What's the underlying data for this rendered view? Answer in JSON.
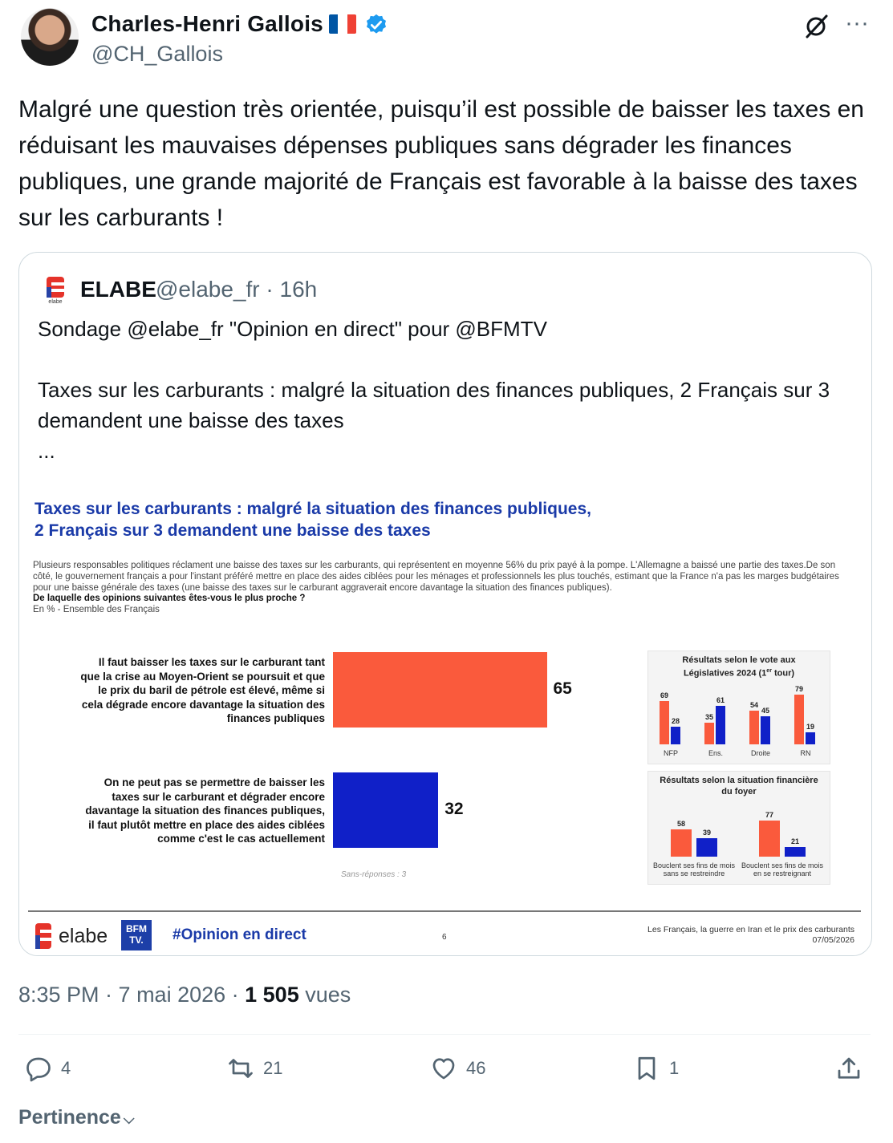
{
  "author": {
    "name": "Charles-Henri Gallois",
    "handle": "@CH_Gallois",
    "flag_colors": [
      "#0055a4",
      "#ffffff",
      "#ef4135"
    ],
    "verified_color": "#1d9bf0"
  },
  "tweet_text": "Malgré une question très orientée, puisqu’il est possible de baisser les taxes en réduisant les mauvaises dépenses publiques sans dégrader les finances publiques, une grande majorité de Français est favorable à la baisse des taxes sur les carburants !",
  "quote": {
    "name": "ELABE",
    "meta": "@elabe_fr · 16h",
    "text_line1": "Sondage @elabe_fr \"Opinion en direct\" pour @BFMTV",
    "text_line2": "Taxes sur les carburants : malgré la situation des finances publiques, 2 Français sur 3 demandent une baisse des taxes",
    "text_line3": "...",
    "logo_colors": [
      "#e5332a",
      "#2743a6"
    ]
  },
  "infographic": {
    "title_line1": "Taxes sur les carburants : malgré la situation des finances publiques,",
    "title_line2": "2 Français sur 3 demandent une baisse des taxes",
    "intro": "Plusieurs responsables politiques réclament une baisse des taxes sur les carburants, qui représentent en moyenne 56% du prix payé à la pompe. L'Allemagne a baissé une partie des taxes.De son côté, le gouvernement français a pour l'instant préféré mettre en place des aides ciblées pour les ménages et professionnels les plus touchés, estimant que la France n'a pas les marges budgétaires pour une baisse générale des taxes (une baisse des taxes sur le carburant aggraverait encore davantage la situation des finances publiques).",
    "question": "De laquelle des opinions suivantes êtes-vous le plus proche ?",
    "base": "En % - Ensemble des Français",
    "no_answer": "Sans-réponses : 3",
    "colors": {
      "orange": "#fa5a3c",
      "blue": "#1020c8"
    },
    "footer": {
      "brand": "elabe",
      "bfm_line1": "BFM",
      "bfm_line2": "TV.",
      "hashtag": "#Opinion en direct",
      "page": "6",
      "study_line1": "Les Français, la guerre en Iran et le prix des carburants",
      "study_line2": "07/05/2026"
    }
  },
  "chart_data": [
    {
      "type": "bar",
      "orientation": "horizontal",
      "categories": [
        "Il faut baisser les taxes sur le carburant tant que la crise au Moyen-Orient se poursuit et que le prix du baril de pétrole est élevé, même si cela dégrade encore davantage la situation des finances publiques",
        "On ne peut pas se permettre de baisser les taxes sur le carburant et dégrader encore davantage la situation des finances publiques, il faut plutôt mettre en place des aides ciblées comme c'est le cas actuellement"
      ],
      "values": [
        65,
        32
      ],
      "value_labels": [
        "65",
        "32"
      ],
      "category_lines": [
        [
          "Il faut baisser les taxes sur le carburant tant",
          "que la crise au Moyen-Orient se poursuit et que",
          "le prix du baril de pétrole est élevé, même si",
          "cela dégrade encore davantage la situation des",
          "finances publiques"
        ],
        [
          "On ne peut pas se permettre de baisser les",
          "taxes sur le carburant et dégrader encore",
          "davantage la situation des finances publiques,",
          "il faut plutôt mettre en place des aides ciblées",
          "comme c'est le cas actuellement"
        ]
      ],
      "xlim": [
        0,
        100
      ]
    },
    {
      "type": "bar",
      "title_line1": "Résultats selon le vote aux",
      "title_line2": "Législatives 2024 (1",
      "title_sup": "er",
      "title_end": " tour)",
      "categories": [
        "NFP",
        "Ens.",
        "Droite",
        "RN"
      ],
      "series": [
        {
          "values": [
            69,
            35,
            54,
            79
          ]
        },
        {
          "values": [
            28,
            61,
            45,
            19
          ]
        }
      ]
    },
    {
      "type": "bar",
      "title_line1": "Résultats selon la situation financière",
      "title_line2": "du foyer",
      "categories_lines": [
        [
          "Bouclent ses fins de mois",
          "sans se restreindre"
        ],
        [
          "Bouclent ses fins de mois",
          "en se restreignant"
        ]
      ],
      "series": [
        {
          "values": [
            58,
            77
          ]
        },
        {
          "values": [
            39,
            21
          ]
        }
      ]
    }
  ],
  "post_meta": {
    "time": "8:35 PM · 7 mai 2026 · ",
    "views_count": "1 505",
    "views_label": " vues"
  },
  "actions": {
    "replies": "4",
    "reposts": "21",
    "likes": "46",
    "bookmarks": "1"
  },
  "sort_label": "Pertinence"
}
